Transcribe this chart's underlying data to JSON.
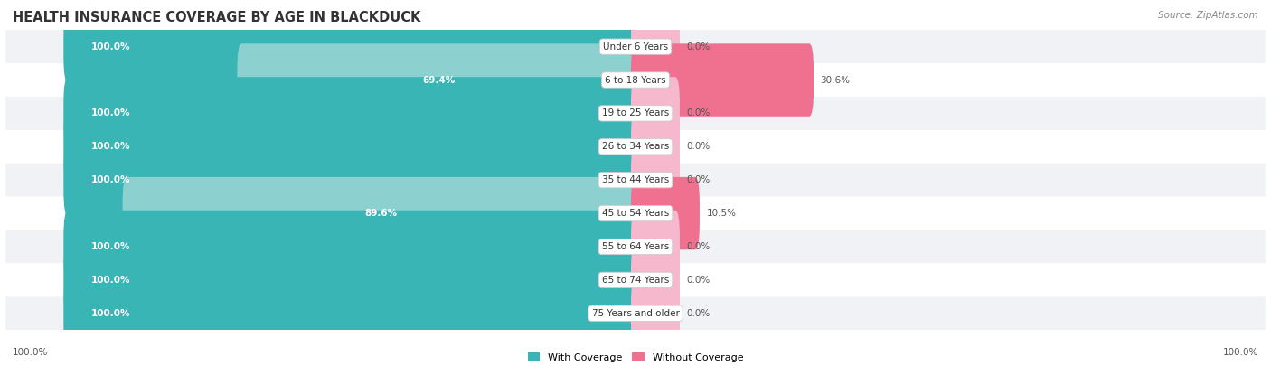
{
  "title": "HEALTH INSURANCE COVERAGE BY AGE IN BLACKDUCK",
  "source": "Source: ZipAtlas.com",
  "categories": [
    "Under 6 Years",
    "6 to 18 Years",
    "19 to 25 Years",
    "26 to 34 Years",
    "35 to 44 Years",
    "45 to 54 Years",
    "55 to 64 Years",
    "65 to 74 Years",
    "75 Years and older"
  ],
  "with_coverage": [
    100.0,
    69.4,
    100.0,
    100.0,
    100.0,
    89.6,
    100.0,
    100.0,
    100.0
  ],
  "without_coverage": [
    0.0,
    30.6,
    0.0,
    0.0,
    0.0,
    10.5,
    0.0,
    0.0,
    0.0
  ],
  "color_with_full": "#3ab5b5",
  "color_with_partial": "#8dd0d0",
  "color_without_full": "#f07090",
  "color_without_light": "#f5b8cc",
  "bg_odd": "#f0f2f5",
  "bg_even": "#ffffff",
  "label_fontsize": 7.5,
  "cat_fontsize": 7.5,
  "title_fontsize": 10.5,
  "source_fontsize": 7.5,
  "legend_with": "With Coverage",
  "legend_without": "Without Coverage"
}
